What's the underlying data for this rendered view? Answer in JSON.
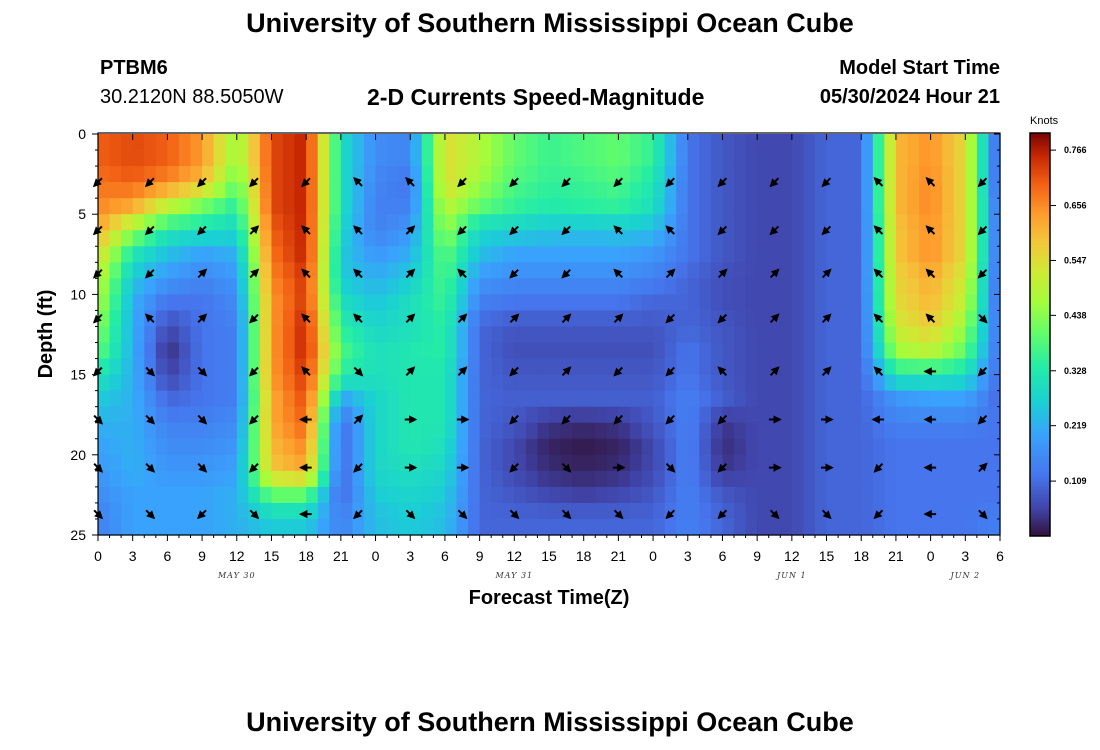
{
  "header": {
    "title": "University of Southern Mississippi Ocean Cube",
    "station": "PTBM6",
    "coordinates": "30.2120N  88.5050W",
    "subtitle": "2-D Currents Speed-Magnitude",
    "model_start_label": "Model Start Time",
    "model_start_value": "05/30/2024 Hour 21",
    "footer_title": "University of Southern Mississippi Ocean Cube"
  },
  "chart_data": {
    "type": "heatmap",
    "title": "2-D Currents Speed-Magnitude",
    "xlabel": "Forecast Time(Z)",
    "ylabel": "Depth (ft)",
    "x_tick_labels": [
      "0",
      "3",
      "6",
      "9",
      "12",
      "15",
      "18",
      "21",
      "0",
      "3",
      "6",
      "9",
      "12",
      "15",
      "18",
      "21",
      "0",
      "3",
      "6",
      "9",
      "12",
      "15",
      "18",
      "21",
      "0",
      "3",
      "6"
    ],
    "x_range_hours": [
      0,
      78
    ],
    "date_labels": [
      {
        "label": "MAY 30",
        "hour": 12
      },
      {
        "label": "MAY 31",
        "hour": 36
      },
      {
        "label": "JUN 1",
        "hour": 60
      },
      {
        "label": "JUN 2",
        "hour": 75
      }
    ],
    "y_ticks": [
      "0",
      "5",
      "10",
      "15",
      "20",
      "25"
    ],
    "ylim": [
      0,
      25
    ],
    "colorbar": {
      "unit": "Knots",
      "ticks": [
        "0.766",
        "0.656",
        "0.547",
        "0.438",
        "0.328",
        "0.219",
        "0.109"
      ],
      "range": [
        0,
        0.8
      ]
    },
    "depths_ft": [
      0,
      1.5,
      3,
      4.5,
      6,
      7.5,
      9,
      10.5,
      12,
      13.5,
      15,
      16.5,
      18,
      19.5,
      21,
      22.5,
      24,
      25
    ],
    "speed_times": [
      0,
      3,
      6,
      9,
      12,
      15,
      18,
      21,
      24,
      27,
      30,
      33,
      36,
      39,
      42,
      45,
      48,
      51,
      54,
      57,
      60,
      63,
      66,
      69,
      72,
      75,
      78
    ],
    "speed_knots": [
      [
        0.7,
        0.72,
        0.7,
        0.64,
        0.45,
        0.72,
        0.76,
        0.3,
        0.16,
        0.15,
        0.55,
        0.48,
        0.4,
        0.36,
        0.38,
        0.4,
        0.35,
        0.12,
        0.08,
        0.06,
        0.06,
        0.1,
        0.1,
        0.6,
        0.65,
        0.55,
        0.06
      ],
      [
        0.7,
        0.72,
        0.7,
        0.64,
        0.45,
        0.72,
        0.76,
        0.3,
        0.16,
        0.15,
        0.55,
        0.48,
        0.4,
        0.36,
        0.38,
        0.4,
        0.35,
        0.12,
        0.08,
        0.06,
        0.06,
        0.1,
        0.1,
        0.6,
        0.65,
        0.55,
        0.06
      ],
      [
        0.68,
        0.7,
        0.66,
        0.6,
        0.4,
        0.72,
        0.76,
        0.3,
        0.15,
        0.12,
        0.55,
        0.46,
        0.38,
        0.35,
        0.36,
        0.38,
        0.32,
        0.12,
        0.08,
        0.06,
        0.06,
        0.1,
        0.1,
        0.6,
        0.66,
        0.55,
        0.06
      ],
      [
        0.66,
        0.62,
        0.5,
        0.42,
        0.34,
        0.72,
        0.76,
        0.3,
        0.14,
        0.14,
        0.5,
        0.4,
        0.35,
        0.33,
        0.34,
        0.35,
        0.3,
        0.12,
        0.08,
        0.06,
        0.06,
        0.1,
        0.1,
        0.6,
        0.66,
        0.55,
        0.08
      ],
      [
        0.62,
        0.45,
        0.32,
        0.3,
        0.28,
        0.7,
        0.76,
        0.28,
        0.14,
        0.18,
        0.45,
        0.28,
        0.27,
        0.25,
        0.24,
        0.25,
        0.24,
        0.12,
        0.08,
        0.06,
        0.06,
        0.1,
        0.1,
        0.58,
        0.65,
        0.55,
        0.08
      ],
      [
        0.55,
        0.32,
        0.24,
        0.2,
        0.22,
        0.68,
        0.76,
        0.26,
        0.18,
        0.22,
        0.4,
        0.24,
        0.2,
        0.2,
        0.2,
        0.2,
        0.18,
        0.12,
        0.08,
        0.06,
        0.06,
        0.1,
        0.1,
        0.58,
        0.65,
        0.55,
        0.08
      ],
      [
        0.5,
        0.25,
        0.18,
        0.15,
        0.18,
        0.66,
        0.74,
        0.26,
        0.22,
        0.26,
        0.38,
        0.18,
        0.16,
        0.16,
        0.16,
        0.16,
        0.14,
        0.1,
        0.07,
        0.06,
        0.06,
        0.1,
        0.1,
        0.56,
        0.62,
        0.52,
        0.08
      ],
      [
        0.48,
        0.22,
        0.12,
        0.12,
        0.16,
        0.64,
        0.74,
        0.3,
        0.25,
        0.3,
        0.36,
        0.14,
        0.12,
        0.12,
        0.12,
        0.12,
        0.1,
        0.1,
        0.07,
        0.06,
        0.06,
        0.1,
        0.1,
        0.55,
        0.6,
        0.5,
        0.08
      ],
      [
        0.44,
        0.22,
        0.06,
        0.12,
        0.14,
        0.64,
        0.76,
        0.34,
        0.28,
        0.3,
        0.34,
        0.1,
        0.08,
        0.08,
        0.08,
        0.08,
        0.08,
        0.1,
        0.08,
        0.06,
        0.06,
        0.1,
        0.1,
        0.52,
        0.58,
        0.45,
        0.1
      ],
      [
        0.4,
        0.22,
        0.03,
        0.12,
        0.14,
        0.64,
        0.76,
        0.38,
        0.3,
        0.32,
        0.34,
        0.1,
        0.07,
        0.07,
        0.07,
        0.07,
        0.07,
        0.12,
        0.08,
        0.06,
        0.06,
        0.1,
        0.1,
        0.46,
        0.5,
        0.4,
        0.1
      ],
      [
        0.32,
        0.22,
        0.05,
        0.12,
        0.14,
        0.64,
        0.74,
        0.34,
        0.3,
        0.32,
        0.32,
        0.1,
        0.08,
        0.08,
        0.08,
        0.08,
        0.08,
        0.12,
        0.08,
        0.06,
        0.06,
        0.1,
        0.1,
        0.32,
        0.32,
        0.3,
        0.1
      ],
      [
        0.26,
        0.22,
        0.1,
        0.12,
        0.14,
        0.62,
        0.72,
        0.2,
        0.28,
        0.32,
        0.32,
        0.1,
        0.09,
        0.09,
        0.09,
        0.09,
        0.09,
        0.14,
        0.09,
        0.06,
        0.06,
        0.1,
        0.1,
        0.18,
        0.2,
        0.2,
        0.1
      ],
      [
        0.22,
        0.22,
        0.14,
        0.14,
        0.16,
        0.62,
        0.7,
        0.1,
        0.28,
        0.32,
        0.32,
        0.1,
        0.08,
        0.04,
        0.03,
        0.04,
        0.08,
        0.14,
        0.04,
        0.06,
        0.06,
        0.1,
        0.1,
        0.14,
        0.14,
        0.14,
        0.12
      ],
      [
        0.2,
        0.22,
        0.16,
        0.16,
        0.18,
        0.6,
        0.66,
        0.1,
        0.28,
        0.32,
        0.3,
        0.1,
        0.06,
        0.02,
        0.01,
        0.02,
        0.06,
        0.14,
        0.03,
        0.06,
        0.06,
        0.1,
        0.1,
        0.12,
        0.12,
        0.12,
        0.12
      ],
      [
        0.18,
        0.22,
        0.18,
        0.18,
        0.2,
        0.58,
        0.62,
        0.1,
        0.28,
        0.3,
        0.28,
        0.1,
        0.06,
        0.03,
        0.02,
        0.03,
        0.06,
        0.14,
        0.04,
        0.06,
        0.06,
        0.1,
        0.1,
        0.12,
        0.12,
        0.12,
        0.12
      ],
      [
        0.16,
        0.2,
        0.2,
        0.2,
        0.22,
        0.4,
        0.4,
        0.1,
        0.26,
        0.28,
        0.26,
        0.1,
        0.08,
        0.06,
        0.05,
        0.06,
        0.08,
        0.14,
        0.08,
        0.06,
        0.06,
        0.1,
        0.1,
        0.12,
        0.12,
        0.12,
        0.12
      ],
      [
        0.14,
        0.2,
        0.2,
        0.2,
        0.22,
        0.26,
        0.26,
        0.14,
        0.24,
        0.26,
        0.24,
        0.1,
        0.1,
        0.1,
        0.1,
        0.1,
        0.1,
        0.14,
        0.1,
        0.06,
        0.06,
        0.1,
        0.1,
        0.12,
        0.12,
        0.12,
        0.14
      ],
      [
        0.14,
        0.2,
        0.2,
        0.2,
        0.22,
        0.26,
        0.26,
        0.14,
        0.24,
        0.26,
        0.24,
        0.1,
        0.1,
        0.1,
        0.1,
        0.1,
        0.1,
        0.14,
        0.1,
        0.06,
        0.06,
        0.1,
        0.1,
        0.12,
        0.12,
        0.12,
        0.14
      ]
    ],
    "vector_times": [
      0,
      4.5,
      9,
      13.5,
      18,
      22.5,
      27,
      31.5,
      36,
      40.5,
      45,
      49.5,
      54,
      58.5,
      63,
      67.5,
      72,
      76.5
    ],
    "vector_depths_ft": [
      3,
      6,
      8.7,
      11.5,
      14.8,
      17.8,
      20.8,
      23.7
    ],
    "vector_directions_deg": [
      [
        135,
        135,
        135,
        135,
        135,
        225,
        225,
        135,
        135,
        135,
        135,
        135,
        135,
        135,
        135,
        225,
        225,
        135
      ],
      [
        135,
        135,
        135,
        315,
        225,
        225,
        315,
        135,
        135,
        135,
        225,
        225,
        135,
        135,
        135,
        225,
        225,
        135
      ],
      [
        135,
        135,
        315,
        315,
        225,
        225,
        315,
        225,
        135,
        135,
        225,
        315,
        315,
        315,
        315,
        225,
        225,
        135
      ],
      [
        135,
        225,
        315,
        135,
        225,
        225,
        315,
        315,
        315,
        315,
        315,
        135,
        135,
        315,
        315,
        225,
        225,
        45
      ],
      [
        135,
        45,
        45,
        135,
        225,
        45,
        315,
        315,
        135,
        315,
        135,
        135,
        225,
        315,
        315,
        225,
        180,
        135
      ],
      [
        45,
        45,
        45,
        135,
        180,
        315,
        0,
        0,
        135,
        135,
        135,
        135,
        135,
        0,
        0,
        180,
        180,
        135
      ],
      [
        45,
        45,
        45,
        135,
        180,
        135,
        0,
        0,
        135,
        45,
        0,
        45,
        135,
        0,
        0,
        135,
        180,
        315
      ],
      [
        45,
        45,
        135,
        45,
        180,
        135,
        45,
        45,
        45,
        45,
        45,
        135,
        135,
        45,
        45,
        135,
        180,
        45
      ]
    ]
  }
}
